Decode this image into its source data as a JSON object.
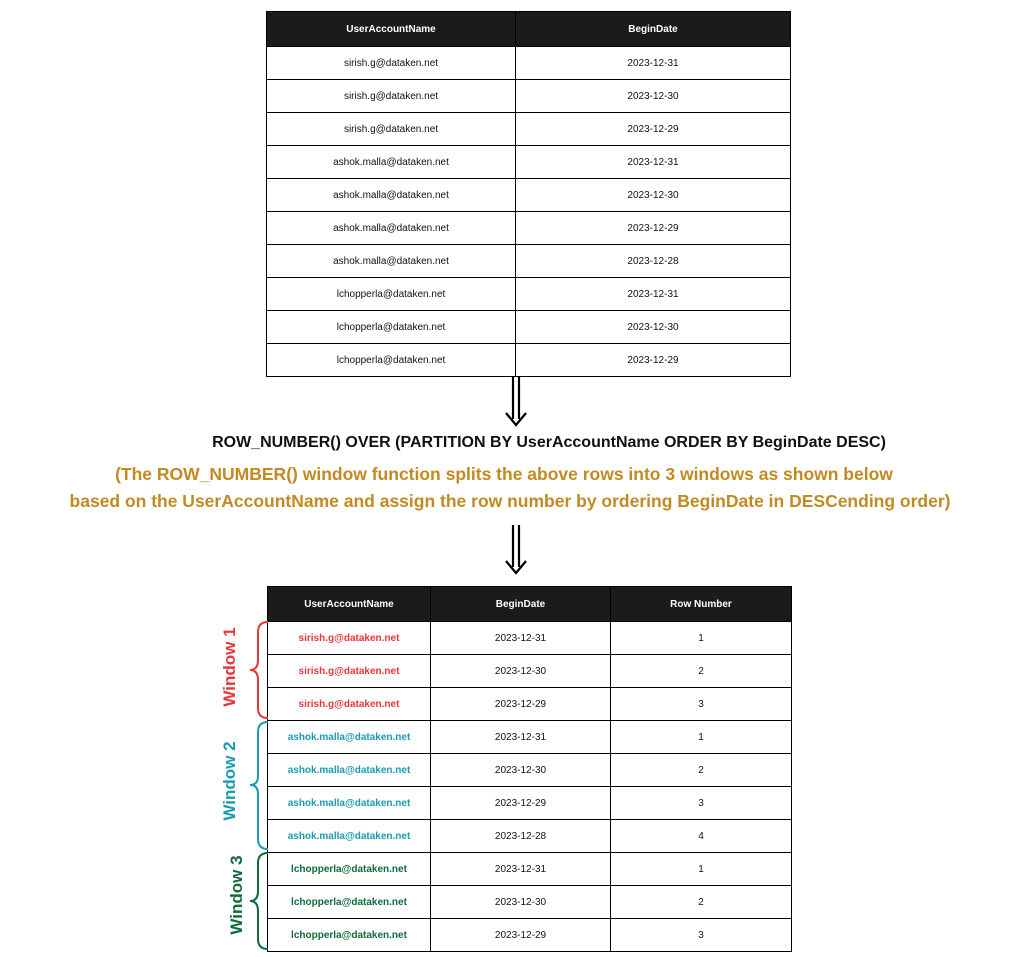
{
  "table1": {
    "headers": [
      "UserAccountName",
      "BeginDate"
    ],
    "rows": [
      [
        "sirish.g@dataken.net",
        "2023-12-31"
      ],
      [
        "sirish.g@dataken.net",
        "2023-12-30"
      ],
      [
        "sirish.g@dataken.net",
        "2023-12-29"
      ],
      [
        "ashok.malla@dataken.net",
        "2023-12-31"
      ],
      [
        "ashok.malla@dataken.net",
        "2023-12-30"
      ],
      [
        "ashok.malla@dataken.net",
        "2023-12-29"
      ],
      [
        "ashok.malla@dataken.net",
        "2023-12-28"
      ],
      [
        "lchopperla@dataken.net",
        "2023-12-31"
      ],
      [
        "lchopperla@dataken.net",
        "2023-12-30"
      ],
      [
        "lchopperla@dataken.net",
        "2023-12-29"
      ]
    ]
  },
  "sql": "ROW_NUMBER() OVER  (PARTITION BY UserAccountName ORDER BY BeginDate DESC)",
  "note_line1": "(The ROW_NUMBER() window function splits the above rows into 3 windows as shown below",
  "note_line2": "based on the UserAccountName and assign the row number by ordering BeginDate in DESCending order)",
  "table2": {
    "headers": [
      "UserAccountName",
      "BeginDate",
      "Row Number"
    ],
    "rows": [
      [
        "sirish.g@dataken.net",
        "2023-12-31",
        "1"
      ],
      [
        "sirish.g@dataken.net",
        "2023-12-30",
        "2"
      ],
      [
        "sirish.g@dataken.net",
        "2023-12-29",
        "3"
      ],
      [
        "ashok.malla@dataken.net",
        "2023-12-31",
        "1"
      ],
      [
        "ashok.malla@dataken.net",
        "2023-12-30",
        "2"
      ],
      [
        "ashok.malla@dataken.net",
        "2023-12-29",
        "3"
      ],
      [
        "ashok.malla@dataken.net",
        "2023-12-28",
        "4"
      ],
      [
        "lchopperla@dataken.net",
        "2023-12-31",
        "1"
      ],
      [
        "lchopperla@dataken.net",
        "2023-12-30",
        "2"
      ],
      [
        "lchopperla@dataken.net",
        "2023-12-29",
        "3"
      ]
    ]
  },
  "windows": [
    {
      "label": "Window 1",
      "color": "#e8373a"
    },
    {
      "label": "Window 2",
      "color": "#1a9bb0"
    },
    {
      "label": "Window 3",
      "color": "#0f6b3a"
    }
  ]
}
